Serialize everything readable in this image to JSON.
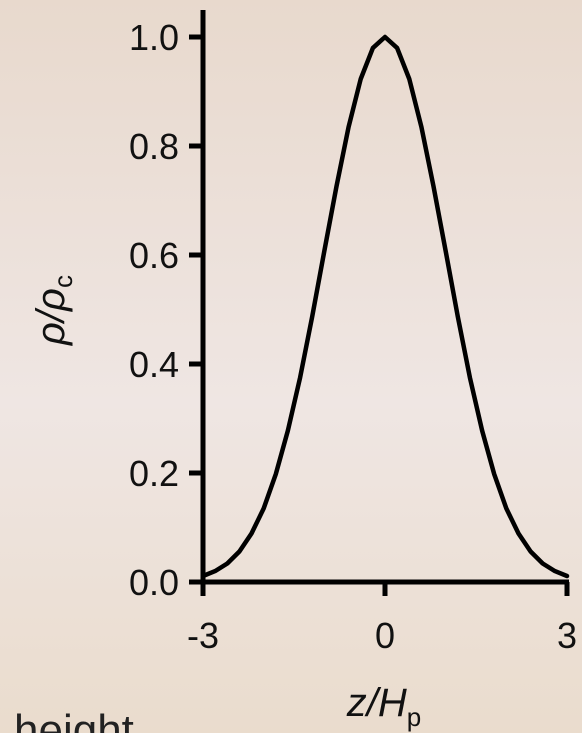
{
  "chart_data": {
    "type": "line",
    "title": "",
    "xlabel": "z/H",
    "xlabel_sub": "p",
    "ylabel": "ρ/ρ",
    "ylabel_sub": "c",
    "xlim": [
      -3,
      3
    ],
    "ylim": [
      0,
      1
    ],
    "x_ticks": [
      -3,
      0,
      3
    ],
    "x_tick_labels": [
      "-3",
      "0",
      "3"
    ],
    "y_ticks": [
      0,
      0.2,
      0.4,
      0.6,
      0.8,
      1.0
    ],
    "y_tick_labels": [
      "0.0",
      "0.2",
      "0.4",
      "0.6",
      "0.8",
      "1.0"
    ],
    "grid": false,
    "series": [
      {
        "color": "#000000",
        "x": [
          -3.0,
          -2.8,
          -2.6,
          -2.4,
          -2.2,
          -2.0,
          -1.8,
          -1.6,
          -1.4,
          -1.2,
          -1.0,
          -0.8,
          -0.6,
          -0.4,
          -0.2,
          0.0,
          0.2,
          0.4,
          0.6,
          0.8,
          1.0,
          1.2,
          1.4,
          1.6,
          1.8,
          2.0,
          2.2,
          2.4,
          2.6,
          2.8,
          3.0
        ],
        "y": [
          0.011,
          0.02,
          0.034,
          0.056,
          0.089,
          0.135,
          0.198,
          0.278,
          0.375,
          0.487,
          0.607,
          0.726,
          0.835,
          0.923,
          0.98,
          1.0,
          0.98,
          0.923,
          0.835,
          0.726,
          0.607,
          0.487,
          0.375,
          0.278,
          0.198,
          0.135,
          0.089,
          0.056,
          0.034,
          0.02,
          0.011
        ]
      }
    ]
  },
  "caption_fragment": "height"
}
